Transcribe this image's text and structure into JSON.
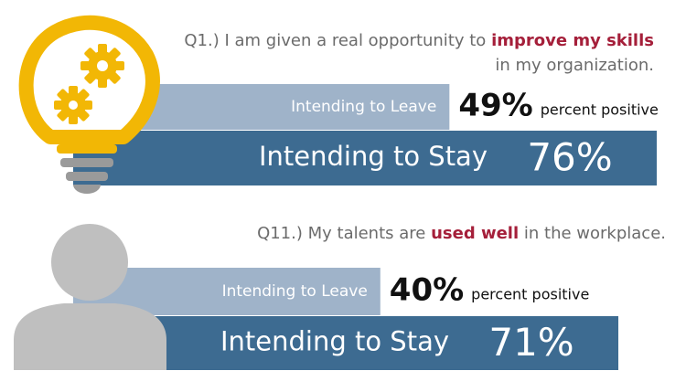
{
  "chart_data": [
    {
      "type": "bar",
      "question": [
        "Q1.) I am given a real opportunity to",
        "improve my skills",
        "in my organization."
      ],
      "categories": [
        "Intending to Leave",
        "Intending to Stay"
      ],
      "values": [
        49,
        76
      ],
      "value_labels": [
        "49%",
        "76%"
      ],
      "annotation": "percent positive",
      "colors": [
        "#9fb3c9",
        "#3d6b91"
      ],
      "highlight_color": "#a51f3a"
    },
    {
      "type": "bar",
      "question": [
        "Q11.) My talents are",
        "used well",
        "in the workplace."
      ],
      "categories": [
        "Intending to Leave",
        "Intending to Stay"
      ],
      "values": [
        40,
        71
      ],
      "value_labels": [
        "40%",
        "71%"
      ],
      "annotation": "percent positive",
      "colors": [
        "#9fb3c9",
        "#3d6b91"
      ],
      "highlight_color": "#a51f3a"
    }
  ]
}
